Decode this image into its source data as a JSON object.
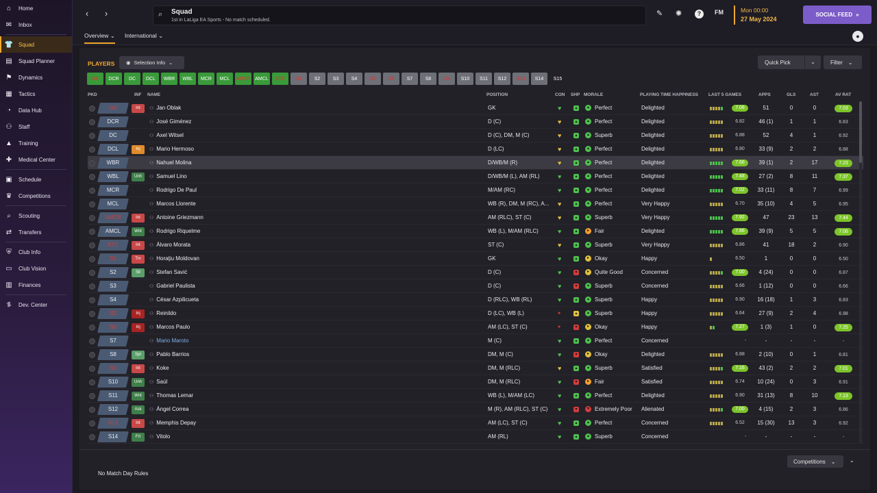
{
  "sidebar": {
    "items": [
      {
        "label": "Home",
        "icon": "home-icon",
        "glyph": "⌂"
      },
      {
        "label": "Inbox",
        "icon": "inbox-icon",
        "glyph": "✉"
      },
      {
        "label": "Squad",
        "icon": "shirt-icon",
        "glyph": "👕",
        "active": true
      },
      {
        "label": "Squad Planner",
        "icon": "planner-icon",
        "glyph": "▤"
      },
      {
        "label": "Dynamics",
        "icon": "dynamics-icon",
        "glyph": "⚑"
      },
      {
        "label": "Tactics",
        "icon": "tactics-icon",
        "glyph": "▦"
      },
      {
        "label": "Data Hub",
        "icon": "data-hub-icon",
        "glyph": "◔"
      },
      {
        "label": "Staff",
        "icon": "staff-icon",
        "glyph": "⚇"
      },
      {
        "label": "Training",
        "icon": "training-icon",
        "glyph": "▲"
      },
      {
        "label": "Medical Center",
        "icon": "medical-icon",
        "glyph": "✚"
      },
      {
        "label": "Schedule",
        "icon": "schedule-icon",
        "glyph": "▣"
      },
      {
        "label": "Competitions",
        "icon": "trophy-icon",
        "glyph": "♛"
      },
      {
        "label": "Scouting",
        "icon": "scouting-icon",
        "glyph": "⌕"
      },
      {
        "label": "Transfers",
        "icon": "transfers-icon",
        "glyph": "⇄"
      },
      {
        "label": "Club Info",
        "icon": "club-info-icon",
        "glyph": "⛨"
      },
      {
        "label": "Club Vision",
        "icon": "club-vision-icon",
        "glyph": "▭"
      },
      {
        "label": "Finances",
        "icon": "finances-icon",
        "glyph": "▥"
      },
      {
        "label": "Dev. Center",
        "icon": "dev-center-icon",
        "glyph": "⥮"
      }
    ]
  },
  "header": {
    "title": "Squad",
    "subtitle": "1st in LaLiga EA Sports - No match scheduled.",
    "fm_label": "FM",
    "date_line1": "Mon 00:00",
    "date_line2": "27 May 2024",
    "social_feed": "SOCIAL FEED"
  },
  "tabs": [
    {
      "label": "Overview ⌄"
    },
    {
      "label": "International ⌄"
    }
  ],
  "toolbar": {
    "players_label": "PLAYERS",
    "selection_info": "Selection Info",
    "quick_pick": "Quick Pick",
    "filter": "Filter"
  },
  "position_chips": [
    {
      "label": "GK",
      "color": "#3a9a3a",
      "text": "#e03030"
    },
    {
      "label": "DCR",
      "color": "#3a9a3a",
      "text": "#ffffff"
    },
    {
      "label": "DC",
      "color": "#3a9a3a",
      "text": "#ffffff"
    },
    {
      "label": "DCL",
      "color": "#3a9a3a",
      "text": "#ffffff"
    },
    {
      "label": "WBR",
      "color": "#3a9a3a",
      "text": "#ffffff"
    },
    {
      "label": "WBL",
      "color": "#3a9a3a",
      "text": "#ffffff"
    },
    {
      "label": "MCR",
      "color": "#3a9a3a",
      "text": "#ffffff"
    },
    {
      "label": "MCL",
      "color": "#3a9a3a",
      "text": "#ffffff"
    },
    {
      "label": "AMCR",
      "color": "#3a9a3a",
      "text": "#e03030"
    },
    {
      "label": "AMCL",
      "color": "#3a9a3a",
      "text": "#ffffff"
    },
    {
      "label": "STC",
      "color": "#3a9a3a",
      "text": "#e03030"
    },
    {
      "label": "S1",
      "color": "#6e7078",
      "text": "#e03030"
    },
    {
      "label": "S2",
      "color": "#6e7078",
      "text": "#ffffff"
    },
    {
      "label": "S3",
      "color": "#6e7078",
      "text": "#ffffff"
    },
    {
      "label": "S4",
      "color": "#6e7078",
      "text": "#ffffff"
    },
    {
      "label": "S5",
      "color": "#6e7078",
      "text": "#e03030"
    },
    {
      "label": "S6",
      "color": "#6e7078",
      "text": "#e03030"
    },
    {
      "label": "S7",
      "color": "#6e7078",
      "text": "#ffffff"
    },
    {
      "label": "S8",
      "color": "#6e7078",
      "text": "#ffffff"
    },
    {
      "label": "S9",
      "color": "#6e7078",
      "text": "#e03030"
    },
    {
      "label": "S10",
      "color": "#6e7078",
      "text": "#ffffff"
    },
    {
      "label": "S11",
      "color": "#6e7078",
      "text": "#ffffff"
    },
    {
      "label": "S12",
      "color": "#6e7078",
      "text": "#ffffff"
    },
    {
      "label": "S13",
      "color": "#6e7078",
      "text": "#e03030"
    },
    {
      "label": "S14",
      "color": "#6e7078",
      "text": "#ffffff"
    },
    {
      "label": "S15",
      "color": "#232128",
      "text": "#ffffff"
    }
  ],
  "table": {
    "headers": {
      "pkd": "PKD",
      "inf": "INF",
      "name": "NAME",
      "position": "POSITION",
      "con": "CON",
      "shp": "SHP",
      "morale": "MORALE",
      "pth": "PLAYING TIME HAPPINESS",
      "last5": "LAST 5 GAMES",
      "apps": "APPS",
      "gls": "GLS",
      "ast": "AST",
      "avrat": "AV RAT"
    },
    "rows": [
      {
        "pkd": "GK",
        "pkd_red": true,
        "inf": "Int",
        "inf_type": "int",
        "name": "Jan Oblak",
        "position": "GK",
        "con": "green",
        "shp": "green",
        "morale_icon": "green",
        "morale": "Perfect",
        "pth": "Delighted",
        "form": [
          "y",
          "y",
          "y",
          "y",
          "g"
        ],
        "last5": "7.06",
        "last5_good": true,
        "apps": "51",
        "gls": "0",
        "ast": "0",
        "avrat": "7.03",
        "avrat_good": true
      },
      {
        "pkd": "DCR",
        "inf": "",
        "name": "José Giménez",
        "position": "D (C)",
        "con": "yellow",
        "shp": "green",
        "morale_icon": "green",
        "morale": "Perfect",
        "pth": "Delighted",
        "form": [
          "y",
          "y",
          "y",
          "y",
          "y"
        ],
        "last5": "6.82",
        "apps": "46 (1)",
        "gls": "1",
        "ast": "1",
        "avrat": "6.83"
      },
      {
        "pkd": "DC",
        "inf": "",
        "name": "Axel Witsel",
        "position": "D (C), DM, M (C)",
        "con": "yellow",
        "shp": "green",
        "morale_icon": "green",
        "morale": "Superb",
        "pth": "Delighted",
        "form": [
          "y",
          "y",
          "y",
          "y",
          "y"
        ],
        "last5": "6.88",
        "apps": "52",
        "gls": "4",
        "ast": "1",
        "avrat": "6.92"
      },
      {
        "pkd": "DCL",
        "inf": "Inj",
        "inf_type": "inj",
        "name": "Mario Hermoso",
        "position": "D (LC)",
        "con": "yellow",
        "shp": "green",
        "morale_icon": "green",
        "morale": "Perfect",
        "pth": "Delighted",
        "form": [
          "y",
          "y",
          "y",
          "y",
          "y"
        ],
        "last5": "6.80",
        "apps": "33 (9)",
        "gls": "2",
        "ast": "2",
        "avrat": "6.88"
      },
      {
        "pkd": "WBR",
        "inf": "",
        "name": "Nahuel Molina",
        "position": "D/WB/M (R)",
        "con": "yellow",
        "shp": "green",
        "morale_icon": "green",
        "morale": "Perfect",
        "pth": "Delighted",
        "form": [
          "g",
          "g",
          "g",
          "g",
          "g"
        ],
        "last5": "7.66",
        "last5_good": true,
        "apps": "39 (1)",
        "gls": "2",
        "ast": "17",
        "avrat": "7.23",
        "avrat_good": true,
        "highlight": true
      },
      {
        "pkd": "WBL",
        "inf": "Unh",
        "inf_type": "unh",
        "name": "Samuel Lino",
        "position": "D/WB/M (L), AM (RL)",
        "con": "green",
        "shp": "green",
        "morale_icon": "green",
        "morale": "Perfect",
        "pth": "Delighted",
        "form": [
          "g",
          "g",
          "g",
          "g",
          "g"
        ],
        "last5": "7.48",
        "last5_good": true,
        "apps": "27 (2)",
        "gls": "8",
        "ast": "11",
        "avrat": "7.37",
        "avrat_good": true
      },
      {
        "pkd": "MCR",
        "inf": "",
        "name": "Rodrigo De Paul",
        "position": "M/AM (RC)",
        "con": "green",
        "shp": "green",
        "morale_icon": "green",
        "morale": "Perfect",
        "pth": "Delighted",
        "form": [
          "g",
          "g",
          "g",
          "g",
          "g"
        ],
        "last5": "7.02",
        "last5_good": true,
        "apps": "33 (11)",
        "gls": "8",
        "ast": "7",
        "avrat": "6.99"
      },
      {
        "pkd": "MCL",
        "inf": "",
        "name": "Marcos Llorente",
        "position": "WB (R), DM, M (RC), A...",
        "con": "yellow",
        "shp": "green",
        "morale_icon": "green",
        "morale": "Perfect",
        "pth": "Very Happy",
        "form": [
          "y",
          "y",
          "y",
          "y",
          "y"
        ],
        "last5": "6.70",
        "apps": "35 (10)",
        "gls": "4",
        "ast": "5",
        "avrat": "6.95"
      },
      {
        "pkd": "AMCR",
        "pkd_red": true,
        "inf": "Int",
        "inf_type": "int",
        "name": "Antoine Griezmann",
        "position": "AM (RLC), ST (C)",
        "con": "yellow",
        "shp": "green",
        "morale_icon": "green",
        "morale": "Superb",
        "pth": "Very Happy",
        "form": [
          "g",
          "g",
          "g",
          "g",
          "g"
        ],
        "last5": "7.92",
        "last5_good": true,
        "apps": "47",
        "gls": "23",
        "ast": "13",
        "avrat": "7.44",
        "avrat_good": true
      },
      {
        "pkd": "AMCL",
        "inf": "Wnt",
        "inf_type": "wnt",
        "name": "Rodrigo Riquelme",
        "position": "WB (L), M/AM (RLC)",
        "con": "green",
        "shp": "green",
        "morale_icon": "orange",
        "morale": "Fair",
        "pth": "Delighted",
        "form": [
          "g",
          "g",
          "g",
          "g",
          "g"
        ],
        "last5": "7.86",
        "last5_good": true,
        "apps": "39 (9)",
        "gls": "5",
        "ast": "5",
        "avrat": "7.06",
        "avrat_good": true
      },
      {
        "pkd": "STC",
        "pkd_red": true,
        "inf": "Int",
        "inf_type": "int",
        "name": "Álvaro Morata",
        "position": "ST (C)",
        "con": "yellow",
        "shp": "green",
        "morale_icon": "green",
        "morale": "Superb",
        "pth": "Very Happy",
        "form": [
          "y",
          "y",
          "y",
          "y",
          "y"
        ],
        "last5": "6.86",
        "apps": "41",
        "gls": "18",
        "ast": "2",
        "avrat": "6.90"
      },
      {
        "pkd": "S1",
        "pkd_red": true,
        "inf": "Trv",
        "inf_type": "trv",
        "name": "Horaţiu Moldovan",
        "position": "GK",
        "con": "green",
        "shp": "green",
        "morale_icon": "yellow",
        "morale": "Okay",
        "pth": "Happy",
        "form": [
          "y"
        ],
        "last5": "6.50",
        "apps": "1",
        "gls": "0",
        "ast": "0",
        "avrat": "6.50"
      },
      {
        "pkd": "S2",
        "inf": "Slt",
        "inf_type": "slt",
        "name": "Stefan Savić",
        "position": "D (C)",
        "con": "green",
        "shp": "red",
        "morale_icon": "yellow",
        "morale": "Quite Good",
        "pth": "Concerned",
        "form": [
          "y",
          "y",
          "y",
          "y",
          "g"
        ],
        "last5": "7.00",
        "last5_good": true,
        "apps": "4 (24)",
        "gls": "0",
        "ast": "0",
        "avrat": "6.87"
      },
      {
        "pkd": "S3",
        "inf": "",
        "name": "Gabriel Paulista",
        "position": "D (C)",
        "con": "green",
        "shp": "red",
        "morale_icon": "green",
        "morale": "Superb",
        "pth": "Concerned",
        "form": [
          "y",
          "y",
          "y",
          "y",
          "y"
        ],
        "last5": "6.66",
        "apps": "1 (12)",
        "gls": "0",
        "ast": "0",
        "avrat": "6.66"
      },
      {
        "pkd": "S4",
        "inf": "",
        "name": "César Azpilicueta",
        "position": "D (RLC), WB (RL)",
        "con": "green",
        "shp": "green",
        "morale_icon": "green",
        "morale": "Superb",
        "pth": "Happy",
        "form": [
          "y",
          "y",
          "y",
          "y",
          "y"
        ],
        "last5": "6.90",
        "apps": "16 (18)",
        "gls": "1",
        "ast": "3",
        "avrat": "6.83"
      },
      {
        "pkd": "S5",
        "pkd_red": true,
        "inf": "Inj",
        "inf_type": "inj2",
        "name": "Reinildo",
        "position": "D (LC), WB (L)",
        "con": "red",
        "shp": "yellow",
        "morale_icon": "green",
        "morale": "Superb",
        "pth": "Happy",
        "form": [
          "y",
          "y",
          "y",
          "y",
          "y"
        ],
        "last5": "6.64",
        "apps": "27 (9)",
        "gls": "2",
        "ast": "4",
        "avrat": "6.98"
      },
      {
        "pkd": "S6",
        "pkd_red": true,
        "inf": "Inj",
        "inf_type": "inj2",
        "name": "Marcos Paulo",
        "position": "AM (LC), ST (C)",
        "con": "red",
        "shp": "red",
        "morale_icon": "yellow",
        "morale": "Okay",
        "pth": "Happy",
        "form": [
          "y",
          "g"
        ],
        "last5": "7.27",
        "last5_good": true,
        "apps": "1 (3)",
        "gls": "1",
        "ast": "0",
        "avrat": "7.25",
        "avrat_good": true
      },
      {
        "pkd": "S7",
        "inf": "",
        "name": "Mario Maroto",
        "name_blue": true,
        "position": "M (C)",
        "con": "green",
        "shp": "green",
        "morale_icon": "green",
        "morale": "Perfect",
        "pth": "Concerned",
        "form": [],
        "last5": "-",
        "apps": "-",
        "gls": "-",
        "ast": "-",
        "avrat": "-"
      },
      {
        "pkd": "S8",
        "inf": "Spt",
        "inf_type": "spt",
        "name": "Pablo Barrios",
        "position": "DM, M (C)",
        "con": "green",
        "shp": "red",
        "morale_icon": "yellow",
        "morale": "Okay",
        "pth": "Delighted",
        "form": [
          "y",
          "y",
          "y",
          "y",
          "y"
        ],
        "last5": "6.88",
        "apps": "2 (10)",
        "gls": "0",
        "ast": "1",
        "avrat": "6.81"
      },
      {
        "pkd": "S9",
        "pkd_red": true,
        "inf": "Int",
        "inf_type": "int",
        "name": "Koke",
        "position": "DM, M (RLC)",
        "con": "yellow",
        "shp": "green",
        "morale_icon": "green",
        "morale": "Superb",
        "pth": "Satisfied",
        "form": [
          "y",
          "y",
          "y",
          "y",
          "g"
        ],
        "last5": "7.16",
        "last5_good": true,
        "apps": "43 (2)",
        "gls": "2",
        "ast": "2",
        "avrat": "7.01",
        "avrat_good": true
      },
      {
        "pkd": "S10",
        "inf": "Unh",
        "inf_type": "unh",
        "name": "Saúl",
        "position": "DM, M (RLC)",
        "con": "green",
        "shp": "red",
        "morale_icon": "orange",
        "morale": "Fair",
        "pth": "Satisfied",
        "form": [
          "y",
          "y",
          "y",
          "y",
          "y"
        ],
        "last5": "6.74",
        "apps": "10 (24)",
        "gls": "0",
        "ast": "3",
        "avrat": "6.91"
      },
      {
        "pkd": "S11",
        "inf": "Wnt",
        "inf_type": "wnt",
        "name": "Thomas Lemar",
        "position": "WB (L), M/AM (LC)",
        "con": "green",
        "shp": "green",
        "morale_icon": "green",
        "morale": "Perfect",
        "pth": "Delighted",
        "form": [
          "y",
          "y",
          "y",
          "y",
          "y"
        ],
        "last5": "6.90",
        "apps": "31 (13)",
        "gls": "8",
        "ast": "10",
        "avrat": "7.13",
        "avrat_good": true
      },
      {
        "pkd": "S12",
        "inf": "Ask",
        "inf_type": "ask",
        "name": "Ángel Correa",
        "position": "M (R), AM (RLC), ST (C)",
        "con": "green",
        "shp": "red",
        "morale_icon": "red",
        "morale": "Extremely Poor",
        "pth": "Alienated",
        "form": [
          "y",
          "y",
          "y",
          "y",
          "g"
        ],
        "last5": "7.00",
        "last5_good": true,
        "apps": "4 (15)",
        "gls": "2",
        "ast": "3",
        "avrat": "6.86"
      },
      {
        "pkd": "S13",
        "pkd_red": true,
        "inf": "Int",
        "inf_type": "int",
        "name": "Memphis Depay",
        "position": "AM (LC), ST (C)",
        "con": "green",
        "shp": "green",
        "morale_icon": "green",
        "morale": "Perfect",
        "pth": "Concerned",
        "form": [
          "y",
          "y",
          "y",
          "y",
          "y"
        ],
        "last5": "6.52",
        "apps": "15 (30)",
        "gls": "13",
        "ast": "3",
        "avrat": "6.92"
      },
      {
        "pkd": "S14",
        "inf": "Frt",
        "inf_type": "frt",
        "name": "Vitolo",
        "position": "AM (RL)",
        "con": "green",
        "shp": "green",
        "morale_icon": "green",
        "morale": "Superb",
        "pth": "Concerned",
        "form": [],
        "last5": "-",
        "apps": "-",
        "gls": "-",
        "ast": "-",
        "avrat": "-"
      }
    ]
  },
  "footer": {
    "rules": "No Match Day Rules",
    "competitions": "Competitions"
  },
  "colors": {
    "accent": "#f0a830",
    "social": "#7b5cc8",
    "green": "#4ec04e",
    "yellow": "#e0c040",
    "red": "#d23c3c",
    "orange": "#f0a030"
  }
}
